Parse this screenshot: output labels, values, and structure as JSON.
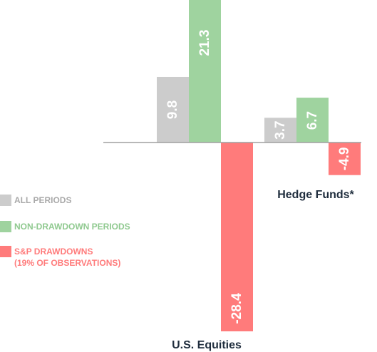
{
  "chart_data": {
    "type": "bar",
    "categories": [
      "U.S. Equities",
      "Hedge Funds*"
    ],
    "series": [
      {
        "name": "ALL PERIODS",
        "color": "#cccccc",
        "values": [
          9.8,
          3.7
        ]
      },
      {
        "name": "NON-DRAWDOWN PERIODS",
        "color": "#9fd39f",
        "values": [
          21.3,
          6.7
        ]
      },
      {
        "name": "S&P DRAWDOWNS (19% OF OBSERVATIONS)",
        "color": "#ff7b7b",
        "values": [
          -28.4,
          -4.9
        ]
      }
    ],
    "value_labels": [
      [
        "9.8",
        "3.7"
      ],
      [
        "21.3",
        "6.7"
      ],
      [
        "-28.4",
        "-4.9"
      ]
    ],
    "ylim": [
      -28.4,
      21.3
    ],
    "grid": false,
    "legend_position": "left"
  },
  "legend": [
    {
      "line1": "ALL PERIODS",
      "line2": "",
      "color": "#aaaaaa",
      "swatch": "#cccccc"
    },
    {
      "line1": "NON-DRAWDOWN PERIODS",
      "line2": "",
      "color": "#8fc98f",
      "swatch": "#9fd39f"
    },
    {
      "line1": "S&P DRAWDOWNS",
      "line2": "(19% OF OBSERVATIONS)",
      "color": "#ff7b7b",
      "swatch": "#ff7b7b"
    }
  ]
}
